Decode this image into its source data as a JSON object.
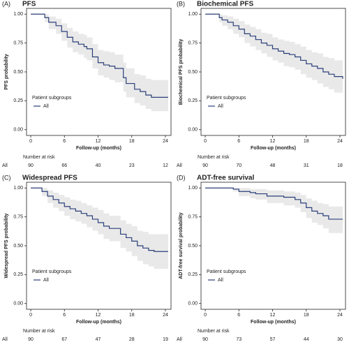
{
  "chart_data": [
    {
      "type": "step",
      "panel_label": "(A)",
      "title": "PFS",
      "y_label": "PFS probability",
      "x_label": "Follow-up (months)",
      "legend_title": "Patient subgroups",
      "band_color": "#e9e9e9",
      "xlim": [
        -0.75,
        25
      ],
      "ylim": [
        -0.05,
        1.05
      ],
      "xticks": [
        0,
        6,
        12,
        18,
        24
      ],
      "yticks": [
        {
          "value": 0,
          "label": "0.00"
        },
        {
          "value": 0.25,
          "label": "0.25"
        },
        {
          "value": 0.5,
          "label": "0.50"
        },
        {
          "value": 0.75,
          "label": "0.75"
        },
        {
          "value": 1,
          "label": "1.00"
        }
      ],
      "series": [
        {
          "name": "All",
          "color": "#2b3f7a",
          "x": [
            0,
            2.5,
            3.2,
            4.5,
            5.5,
            6.5,
            7.5,
            8.5,
            9.5,
            10,
            11,
            12,
            13,
            14,
            15,
            16.5,
            17,
            18.5,
            19.5,
            20.5,
            21.5,
            22.5,
            24.5
          ],
          "values": [
            1,
            0.97,
            0.93,
            0.9,
            0.85,
            0.8,
            0.76,
            0.74,
            0.72,
            0.7,
            0.63,
            0.58,
            0.56,
            0.55,
            0.53,
            0.45,
            0.4,
            0.35,
            0.33,
            0.3,
            0.28,
            0.28,
            0.28
          ],
          "upper": [
            1,
            1,
            0.98,
            0.96,
            0.92,
            0.88,
            0.85,
            0.83,
            0.82,
            0.8,
            0.74,
            0.69,
            0.68,
            0.67,
            0.65,
            0.58,
            0.53,
            0.48,
            0.47,
            0.44,
            0.43,
            0.43,
            0.43
          ],
          "lower": [
            1,
            0.93,
            0.87,
            0.83,
            0.77,
            0.71,
            0.67,
            0.65,
            0.62,
            0.6,
            0.53,
            0.47,
            0.45,
            0.43,
            0.41,
            0.33,
            0.28,
            0.23,
            0.21,
            0.18,
            0.16,
            0.16,
            0.16
          ]
        }
      ],
      "risk_table": {
        "title": "Number at risk",
        "rows": [
          {
            "label": "All",
            "counts": [
              90,
              66,
              40,
              23,
              12
            ]
          }
        ]
      }
    },
    {
      "type": "step",
      "panel_label": "(B)",
      "title": "Biochemical PFS",
      "y_label": "Biochemical PFS probability",
      "x_label": "Follow-up (months)",
      "legend_title": "Patient subgroups",
      "band_color": "#e9e9e9",
      "xlim": [
        -0.75,
        25
      ],
      "ylim": [
        -0.05,
        1.05
      ],
      "xticks": [
        0,
        6,
        12,
        18,
        24
      ],
      "yticks": [
        {
          "value": 0,
          "label": "0.00"
        },
        {
          "value": 0.25,
          "label": "0.25"
        },
        {
          "value": 0.5,
          "label": "0.50"
        },
        {
          "value": 0.75,
          "label": "0.75"
        },
        {
          "value": 1,
          "label": "1.00"
        }
      ],
      "series": [
        {
          "name": "All",
          "color": "#2b3f7a",
          "x": [
            0,
            2.5,
            3,
            4,
            5,
            6,
            7,
            8,
            9,
            10,
            11,
            12,
            13,
            14,
            15,
            16,
            17,
            18,
            19,
            20,
            21,
            22,
            23,
            24.5
          ],
          "values": [
            1,
            0.97,
            0.95,
            0.93,
            0.9,
            0.87,
            0.83,
            0.81,
            0.78,
            0.75,
            0.73,
            0.7,
            0.68,
            0.66,
            0.65,
            0.63,
            0.6,
            0.57,
            0.55,
            0.53,
            0.5,
            0.48,
            0.46,
            0.44
          ],
          "upper": [
            1,
            1,
            0.99,
            0.98,
            0.96,
            0.94,
            0.91,
            0.89,
            0.87,
            0.84,
            0.83,
            0.8,
            0.78,
            0.77,
            0.76,
            0.74,
            0.72,
            0.69,
            0.67,
            0.66,
            0.63,
            0.62,
            0.6,
            0.59
          ],
          "lower": [
            1,
            0.93,
            0.9,
            0.87,
            0.83,
            0.8,
            0.75,
            0.72,
            0.69,
            0.66,
            0.63,
            0.6,
            0.58,
            0.55,
            0.54,
            0.52,
            0.48,
            0.45,
            0.43,
            0.4,
            0.37,
            0.35,
            0.32,
            0.3
          ]
        }
      ],
      "risk_table": {
        "title": "Number at risk",
        "rows": [
          {
            "label": "All",
            "counts": [
              90,
              70,
              48,
              31,
              18
            ]
          }
        ]
      }
    },
    {
      "type": "step",
      "panel_label": "(C)",
      "title": "Widespread PFS",
      "y_label": "Widespread PFS probability",
      "x_label": "Follow-up (months)",
      "legend_title": "Patient subgroups",
      "band_color": "#e9e9e9",
      "xlim": [
        -0.75,
        25
      ],
      "ylim": [
        -0.05,
        1.05
      ],
      "xticks": [
        0,
        6,
        12,
        18,
        24
      ],
      "yticks": [
        {
          "value": 0,
          "label": "0.00"
        },
        {
          "value": 0.25,
          "label": "0.25"
        },
        {
          "value": 0.5,
          "label": "0.50"
        },
        {
          "value": 0.75,
          "label": "0.75"
        },
        {
          "value": 1,
          "label": "1.00"
        }
      ],
      "series": [
        {
          "name": "All",
          "color": "#2b3f7a",
          "x": [
            0,
            2,
            3,
            4,
            5,
            6,
            7,
            8,
            9,
            10,
            11,
            12,
            13,
            14,
            15,
            16,
            17,
            18,
            19,
            20,
            21,
            22,
            24.5
          ],
          "values": [
            1,
            0.97,
            0.93,
            0.9,
            0.87,
            0.84,
            0.82,
            0.8,
            0.78,
            0.76,
            0.73,
            0.7,
            0.67,
            0.65,
            0.65,
            0.6,
            0.57,
            0.54,
            0.5,
            0.48,
            0.46,
            0.45,
            0.45
          ],
          "upper": [
            1,
            1,
            0.98,
            0.96,
            0.94,
            0.92,
            0.9,
            0.89,
            0.87,
            0.85,
            0.83,
            0.81,
            0.78,
            0.76,
            0.76,
            0.72,
            0.69,
            0.67,
            0.63,
            0.62,
            0.6,
            0.6,
            0.6
          ],
          "lower": [
            1,
            0.93,
            0.87,
            0.83,
            0.8,
            0.76,
            0.73,
            0.71,
            0.69,
            0.66,
            0.63,
            0.6,
            0.56,
            0.54,
            0.54,
            0.48,
            0.45,
            0.41,
            0.37,
            0.34,
            0.32,
            0.3,
            0.3
          ]
        }
      ],
      "risk_table": {
        "title": "Number at risk",
        "rows": [
          {
            "label": "All",
            "counts": [
              90,
              67,
              47,
              28,
              19
            ]
          }
        ]
      }
    },
    {
      "type": "step",
      "panel_label": "(D)",
      "title": "ADT-free survival",
      "y_label": "ADT-free survival probability",
      "x_label": "Follow-up (months)",
      "legend_title": "Patient subgroups",
      "band_color": "#e9e9e9",
      "xlim": [
        -0.75,
        25
      ],
      "ylim": [
        -0.05,
        1.05
      ],
      "xticks": [
        0,
        6,
        12,
        18,
        24
      ],
      "yticks": [
        {
          "value": 0,
          "label": "0.00"
        },
        {
          "value": 0.25,
          "label": "0.25"
        },
        {
          "value": 0.5,
          "label": "0.50"
        },
        {
          "value": 0.75,
          "label": "0.75"
        },
        {
          "value": 1,
          "label": "1.00"
        }
      ],
      "series": [
        {
          "name": "All",
          "color": "#2b3f7a",
          "x": [
            0,
            5,
            6,
            8,
            9,
            11,
            12,
            14,
            16,
            17,
            18,
            19,
            20,
            21,
            22,
            24.5
          ],
          "values": [
            1,
            0.99,
            0.97,
            0.96,
            0.95,
            0.93,
            0.93,
            0.92,
            0.9,
            0.87,
            0.83,
            0.8,
            0.78,
            0.76,
            0.73,
            0.73
          ],
          "upper": [
            1,
            1,
            1,
            0.99,
            0.99,
            0.98,
            0.98,
            0.97,
            0.96,
            0.94,
            0.91,
            0.89,
            0.87,
            0.86,
            0.84,
            0.84
          ],
          "lower": [
            1,
            0.97,
            0.93,
            0.91,
            0.9,
            0.87,
            0.87,
            0.85,
            0.83,
            0.79,
            0.74,
            0.7,
            0.68,
            0.65,
            0.61,
            0.61
          ]
        }
      ],
      "risk_table": {
        "title": "Number at risk",
        "rows": [
          {
            "label": "All",
            "counts": [
              90,
              73,
              57,
              44,
              30
            ]
          }
        ]
      }
    }
  ]
}
